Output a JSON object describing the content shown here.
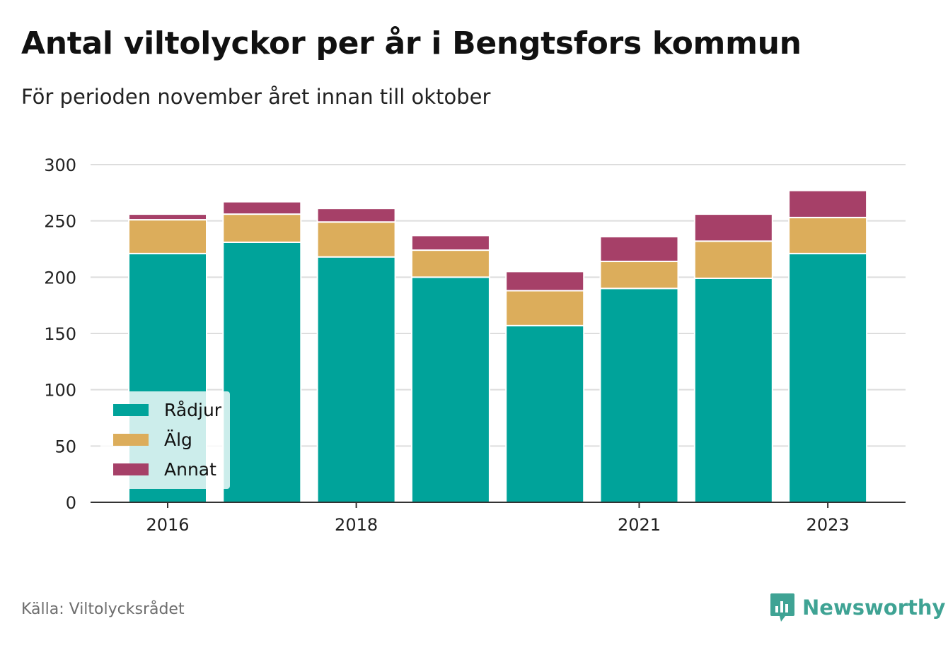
{
  "title": "Antal viltolyckor per år i Bengtsfors kommun",
  "subtitle": "För perioden november året innan till oktober",
  "source": "Källa: Viltolycksrådet",
  "brand": {
    "name": "Newsworthy",
    "icon": "newsworthy-logo-icon",
    "color": "#3fa394"
  },
  "chart_data": {
    "type": "bar",
    "stacked": true,
    "x": [
      2016,
      2017,
      2018,
      2019,
      2020,
      2021,
      2022,
      2023
    ],
    "x_tick_labels": [
      "2016",
      "2018",
      "2021",
      "2023"
    ],
    "x_ticks": [
      2016,
      2018,
      2021,
      2023
    ],
    "ylim": [
      0,
      300
    ],
    "y_ticks": [
      0,
      50,
      100,
      150,
      200,
      250,
      300
    ],
    "grid": true,
    "legend_position": "bottom-left",
    "series": [
      {
        "name": "Rådjur",
        "color": "#00a39a",
        "values": [
          221,
          231,
          218,
          200,
          157,
          190,
          199,
          221
        ]
      },
      {
        "name": "Älg",
        "color": "#dcad5b",
        "values": [
          30,
          25,
          31,
          24,
          31,
          24,
          33,
          32
        ]
      },
      {
        "name": "Annat",
        "color": "#a64068",
        "values": [
          5,
          11,
          12,
          13,
          17,
          22,
          24,
          24
        ]
      }
    ]
  }
}
